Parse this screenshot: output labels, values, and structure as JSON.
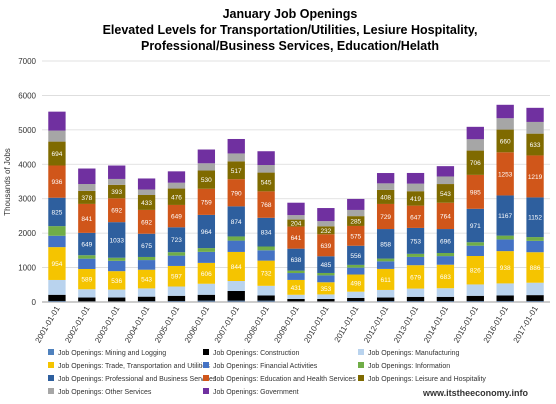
{
  "chart_data": {
    "type": "stacked_bar",
    "title": "January Job Openings",
    "subtitle": "Elevated Levels for Transportation/Utilities, Lesiure Hospitality, Professional/Business Services, Education/Helath",
    "y_label": "Thousands of Jobs",
    "source": "www.itstheeconomy.info",
    "categories": [
      "2001-01-01",
      "2002-01-01",
      "2003-01-01",
      "2004-01-01",
      "2005-01-01",
      "2006-01-01",
      "2007-01-01",
      "2008-01-01",
      "2009-01-01",
      "2010-01-01",
      "2011-01-01",
      "2012-01-01",
      "2013-01-01",
      "2014-01-01",
      "2015-01-01",
      "2016-01-01",
      "2017-01-01"
    ],
    "ylim": [
      0,
      7000
    ],
    "yticks": [
      0,
      1000,
      2000,
      3000,
      4000,
      5000,
      6000,
      7000
    ],
    "grid": true,
    "series": [
      {
        "name": "Job Openings: Mining and Logging",
        "color": "#4f81bd",
        "values": [
          30,
          20,
          20,
          25,
          30,
          40,
          40,
          40,
          20,
          20,
          30,
          30,
          30,
          30,
          30,
          30,
          30
        ]
      },
      {
        "name": "Job Openings: Construction",
        "color": "#000000",
        "values": [
          180,
          110,
          110,
          130,
          150,
          170,
          280,
          150,
          70,
          70,
          90,
          100,
          120,
          120,
          150,
          160,
          170
        ]
      },
      {
        "name": "Job Openings: Manufacturing",
        "color": "#b9d3ee",
        "values": [
          430,
          240,
          230,
          240,
          270,
          320,
          290,
          280,
          120,
          130,
          180,
          220,
          240,
          250,
          330,
          350,
          360
        ]
      },
      {
        "name": "Job Openings: Trade, Transportation and Utilities",
        "color": "#f5c400",
        "labeled": true,
        "values": [
          954,
          589,
          536,
          543,
          597,
          606,
          844,
          732,
          431,
          353,
          498,
          611,
          679,
          683,
          826,
          938,
          886
        ]
      },
      {
        "name": "Job Openings: Financial Activities",
        "color": "#4472c4",
        "values": [
          330,
          300,
          300,
          280,
          300,
          320,
          330,
          300,
          200,
          200,
          200,
          220,
          240,
          250,
          300,
          340,
          330
        ]
      },
      {
        "name": "Job Openings: Information",
        "color": "#70ad47",
        "values": [
          280,
          100,
          90,
          90,
          100,
          110,
          120,
          110,
          70,
          70,
          80,
          80,
          90,
          90,
          100,
          110,
          110
        ]
      },
      {
        "name": "Job Openings: Professional and Business Services",
        "color": "#2e5f9e",
        "labeled": true,
        "values": [
          825,
          649,
          1033,
          675,
          723,
          964,
          874,
          834,
          638,
          485,
          556,
          858,
          753,
          696,
          971,
          1167,
          1152
        ]
      },
      {
        "name": "Job Openings: Education and Health Services",
        "color": "#d0561a",
        "labeled": true,
        "values": [
          936,
          841,
          692,
          692,
          649,
          759,
          790,
          768,
          641,
          639,
          575,
          729,
          647,
          764,
          985,
          1253,
          1219
        ]
      },
      {
        "name": "Job Openings: Leisure and Hospitality",
        "color": "#7f6a00",
        "labeled": true,
        "values": [
          694,
          378,
          393,
          433,
          476,
          530,
          517,
          545,
          204,
          232,
          285,
          408,
          419,
          543,
          706,
          660,
          633
        ]
      },
      {
        "name": "Job Openings: Other Services",
        "color": "#a6a6a6",
        "values": [
          320,
          200,
          170,
          160,
          170,
          210,
          230,
          220,
          130,
          150,
          180,
          190,
          220,
          220,
          330,
          330,
          340
        ]
      },
      {
        "name": "Job Openings: Government",
        "color": "#7030a0",
        "values": [
          550,
          450,
          390,
          320,
          330,
          400,
          420,
          400,
          360,
          380,
          320,
          300,
          310,
          300,
          360,
          390,
          410
        ]
      }
    ]
  }
}
